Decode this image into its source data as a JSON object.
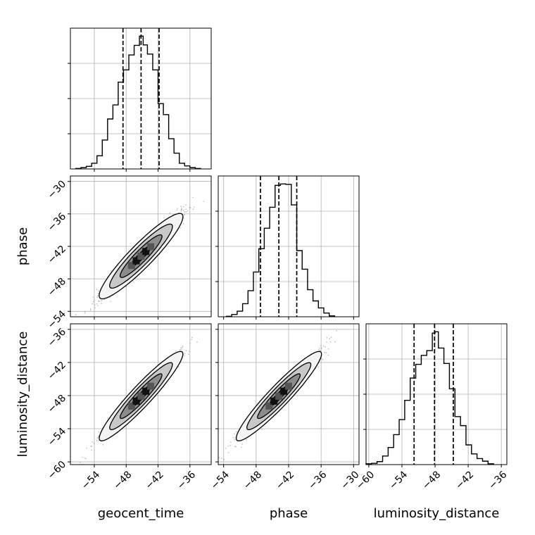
{
  "chart_data": {
    "type": "corner",
    "parameters": [
      "geocent_time",
      "phase",
      "luminosity_distance"
    ],
    "axis_labels": {
      "bottom": [
        "geocent_time",
        "phase",
        "luminosity_distance"
      ],
      "left": [
        "phase",
        "luminosity_distance"
      ]
    },
    "ranges": {
      "geocent_time": [
        -58.5,
        -32
      ],
      "phase": [
        -55,
        -29
      ],
      "luminosity_distance": [
        -60.5,
        -35
      ]
    },
    "ticks": {
      "geocent_time": [
        -54,
        -48,
        -42,
        -36
      ],
      "phase": [
        -54,
        -48,
        -42,
        -36,
        -30
      ],
      "luminosity_distance": [
        -60,
        -54,
        -48,
        -42,
        -36
      ],
      "phase_left": [
        -54,
        -48,
        -42,
        -36,
        -30
      ],
      "luminosity_distance_left": [
        -60,
        -54,
        -48,
        -42,
        -36
      ]
    },
    "tick_labels": {
      "geocent_time": [
        "−54",
        "−48",
        "−42",
        "−36"
      ],
      "phase": [
        "−54",
        "−48",
        "−42",
        "−36",
        "−30"
      ],
      "luminosity_distance": [
        "−60",
        "−54",
        "−48",
        "−42",
        "−36"
      ],
      "phase_left": [
        "−54",
        "−48",
        "−42",
        "−36",
        "−30"
      ],
      "luminosity_distance_left": [
        "−60",
        "−54",
        "−48",
        "−42",
        "−36"
      ]
    },
    "quantiles": {
      "geocent_time": [
        -48.6,
        -45.2,
        -41.8
      ],
      "phase": [
        -47.2,
        -43.8,
        -40.5
      ],
      "luminosity_distance": [
        -51.8,
        -48.1,
        -44.7
      ]
    },
    "histograms": {
      "geocent_time": {
        "edges": [
          -57.5,
          -56.5,
          -55.5,
          -54.5,
          -53.5,
          -52.5,
          -51.5,
          -50.5,
          -49.5,
          -48.5,
          -47.5,
          -46.5,
          -45.5,
          -44.8,
          -44,
          -43,
          -42,
          -41,
          -40,
          -39,
          -38,
          -37,
          -36,
          -35,
          -34
        ],
        "counts": [
          1,
          3,
          6,
          13,
          30,
          66,
          114,
          146,
          198,
          226,
          260,
          282,
          303,
          283,
          262,
          226,
          149,
          124,
          69,
          36,
          13,
          7,
          3,
          1
        ]
      },
      "phase": {
        "edges": [
          -53.5,
          -52.5,
          -51.5,
          -50.5,
          -49.5,
          -48.5,
          -47.5,
          -46.5,
          -45.5,
          -44.5,
          -43.5,
          -42.5,
          -41.5,
          -40.5,
          -39.5,
          -38.5,
          -37.5,
          -36.5,
          -35.5,
          -34.5,
          -33.5
        ],
        "counts": [
          1,
          5,
          12,
          28,
          56,
          96,
          146,
          190,
          235,
          282,
          285,
          284,
          240,
          142,
          102,
          58,
          34,
          19,
          8,
          2
        ]
      },
      "luminosity_distance": {
        "edges": [
          -60.5,
          -59.5,
          -58.5,
          -57.5,
          -56.5,
          -55.5,
          -54.5,
          -53.5,
          -52.5,
          -51.5,
          -50.5,
          -49.5,
          -48.5,
          -48,
          -47.4,
          -46.4,
          -45.4,
          -44.4,
          -43.4,
          -42.4,
          -41.4,
          -40.4,
          -39.4,
          -38.4,
          -37.4
        ],
        "counts": [
          2,
          3,
          7,
          20,
          40,
          70,
          105,
          150,
          202,
          234,
          255,
          266,
          307,
          310,
          272,
          236,
          177,
          112,
          91,
          46,
          25,
          14,
          8,
          2
        ]
      }
    },
    "pairs": [
      {
        "x": "geocent_time",
        "y": "phase",
        "center": [
          -45.2,
          -43.8
        ],
        "sd": [
          3.4,
          3.4
        ],
        "rho": 0.96
      },
      {
        "x": "geocent_time",
        "y": "luminosity_distance",
        "center": [
          -45.2,
          -48.1
        ],
        "sd": [
          3.4,
          3.5
        ],
        "rho": 0.97
      },
      {
        "x": "phase",
        "y": "luminosity_distance",
        "center": [
          -43.8,
          -48.1
        ],
        "sd": [
          3.4,
          3.5
        ],
        "rho": 0.97
      }
    ],
    "contour_levels_sigma": [
      0.5,
      1.0,
      1.5,
      2.0
    ],
    "grid": true,
    "colors": {
      "line": "#000000",
      "grid": "#b0b0b0",
      "points": "#7a7a7a",
      "fills": [
        "#f4f4f4",
        "#c8c8c8",
        "#8c8c8c",
        "#444444"
      ]
    }
  }
}
